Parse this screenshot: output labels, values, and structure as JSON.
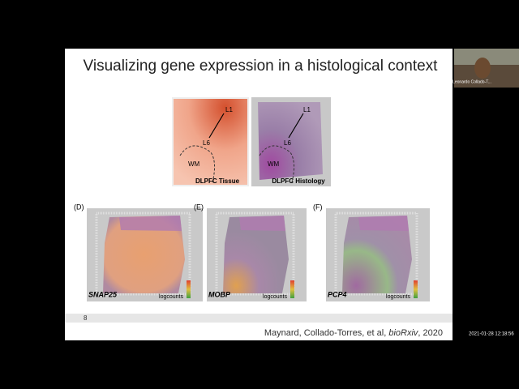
{
  "slide": {
    "title": "Visualizing gene expression in a histological context",
    "tissue": {
      "labels": [
        "L1",
        "L6",
        "WM"
      ],
      "caption": "DLPFC Tissue"
    },
    "histology": {
      "labels": [
        "L1",
        "L6",
        "WM"
      ],
      "caption": "DLPFC Histology"
    },
    "panels": [
      {
        "tag": "(D)",
        "gene": "SNAP25",
        "legend": "logcounts"
      },
      {
        "tag": "(E)",
        "gene": "MOBP",
        "legend": "logcounts"
      },
      {
        "tag": "(F)",
        "gene": "PCP4",
        "legend": "logcounts"
      }
    ],
    "page_number": "8",
    "citation": [
      "Maynard, Collado-Torres, et al, ",
      "bioRxiv",
      ", 2020"
    ]
  },
  "participant": {
    "name": "Leonardo Collado-T..."
  },
  "timestamp": "2021-01-28 12:18:56"
}
